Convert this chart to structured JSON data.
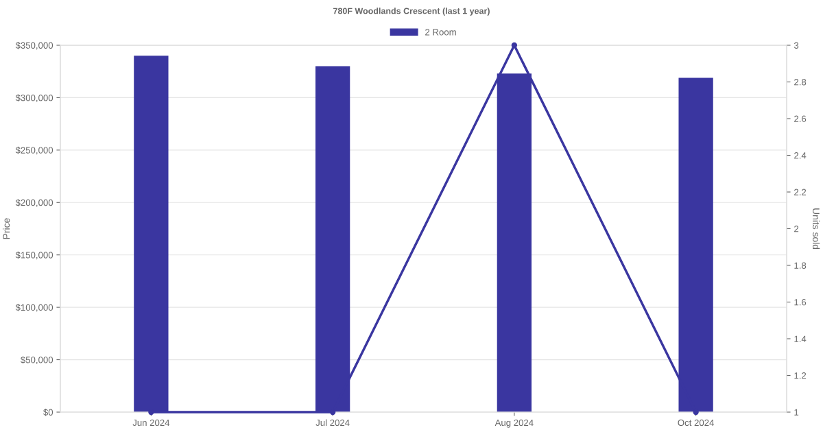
{
  "chart_data": {
    "type": "bar",
    "title": "780F Woodlands Crescent (last 1 year)",
    "categories": [
      "Jun 2024",
      "Jul 2024",
      "Aug 2024",
      "Oct 2024"
    ],
    "series": [
      {
        "name": "2 Room",
        "color": "#3a36a0",
        "values": [
          340000,
          330000,
          323000,
          319000
        ]
      },
      {
        "type": "line",
        "axis": "y2",
        "color": "#3a36a0",
        "values": [
          1,
          1,
          3,
          1
        ]
      }
    ],
    "ylabel": "Price",
    "y2label": "Units sold",
    "ylim": [
      0,
      350000
    ],
    "yticks": [
      {
        "value": 0,
        "label": "$0"
      },
      {
        "value": 50000,
        "label": "$50,000"
      },
      {
        "value": 100000,
        "label": "$100,000"
      },
      {
        "value": 150000,
        "label": "$150,000"
      },
      {
        "value": 200000,
        "label": "$200,000"
      },
      {
        "value": 250000,
        "label": "$250,000"
      },
      {
        "value": 300000,
        "label": "$300,000"
      },
      {
        "value": 350000,
        "label": "$350,000"
      }
    ],
    "y2lim": [
      1,
      3
    ],
    "y2ticks": [
      1,
      1.2,
      1.4,
      1.6,
      1.8,
      2,
      2.2,
      2.4,
      2.6,
      2.8,
      3
    ],
    "grid": "y",
    "legend": "top",
    "marker": "circle",
    "line_style": "solid"
  }
}
